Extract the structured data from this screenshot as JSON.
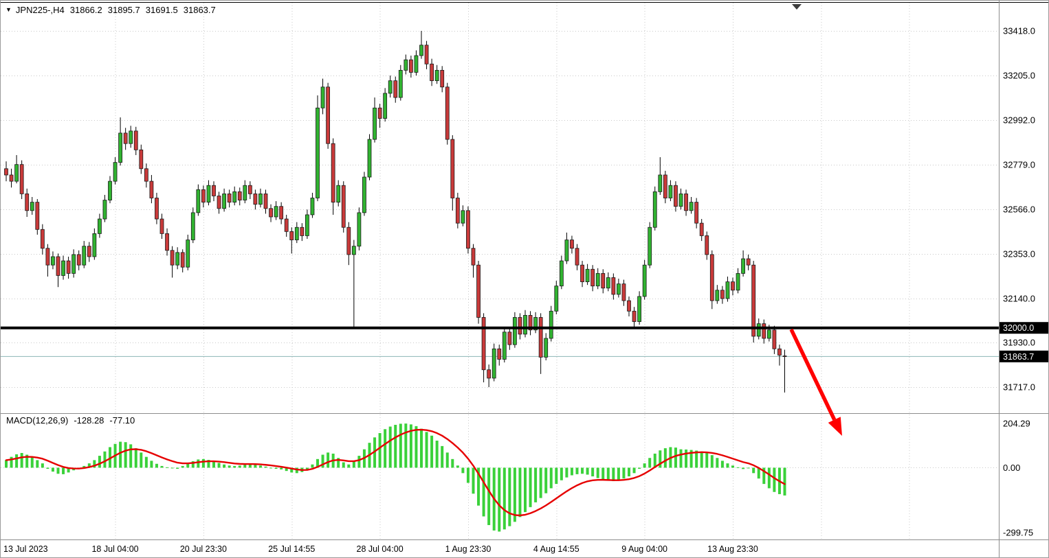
{
  "header": {
    "symbol": "JPN225-",
    "period": "H4",
    "open": "31866.2",
    "high": "31895.7",
    "low": "31691.5",
    "close": "31863.7"
  },
  "macd_panel": {
    "title": "MACD(12,26,9)",
    "main_value": "-128.28",
    "signal_value": "-77.10",
    "axis": [
      {
        "value": 204.29,
        "label": "204.29"
      },
      {
        "value": 0,
        "label": "0.00"
      },
      {
        "value": -299.75,
        "label": "-299.75"
      }
    ]
  },
  "price_axis": {
    "tick_labels": [
      "33418.0",
      "33205.0",
      "32992.0",
      "32779.0",
      "32566.0",
      "32353.0",
      "32140.0",
      "31930.0",
      "31717.0"
    ],
    "hline_label": "32000.0",
    "bid_label": "31863.7"
  },
  "time_axis": {
    "labels": [
      "13 Jul 2023",
      "18 Jul 04:00",
      "20 Jul 23:30",
      "25 Jul 14:55",
      "28 Jul 04:00",
      "1 Aug 23:30",
      "4 Aug 14:55",
      "9 Aug 04:00",
      "13 Aug 23:30"
    ]
  },
  "colors": {
    "bull": "#31b331",
    "bear": "#c93a3a",
    "candle_outline": "#1a1a1a",
    "wick": "#000000",
    "macd_bar": "#3ad13a",
    "signal": "#e60000",
    "grid": "#c8c8c8",
    "bid_line": "#8db6b6",
    "hline": "#000000",
    "arrow": "#ff0000",
    "box_bg": "#000000",
    "box_text": "#ffffff",
    "text": "#000000",
    "separator": "#8c8c8c"
  },
  "chart_data": {
    "type": "candlestick",
    "title": "JPN225-,H4",
    "symbol": "JPN225-",
    "timeframe": "H4",
    "ohlc_current": {
      "open": 31866.2,
      "high": 31895.7,
      "low": 31691.5,
      "close": 31863.7
    },
    "y_axis": {
      "ticks": [
        33418.0,
        33205.0,
        32992.0,
        32779.0,
        32566.0,
        32353.0,
        32140.0,
        31930.0,
        31717.0
      ],
      "horizontal_line": 32000.0,
      "current_price": 31863.7
    },
    "x_axis": {
      "labels": [
        "13 Jul 2023",
        "18 Jul 04:00",
        "20 Jul 23:30",
        "25 Jul 14:55",
        "28 Jul 04:00",
        "1 Aug 23:30",
        "4 Aug 14:55",
        "9 Aug 04:00",
        "13 Aug 23:30"
      ]
    },
    "candles": [
      [
        32760,
        32795,
        32700,
        32730
      ],
      [
        32730,
        32760,
        32670,
        32700
      ],
      [
        32700,
        32825,
        32690,
        32780
      ],
      [
        32780,
        32800,
        32615,
        32640
      ],
      [
        32640,
        32665,
        32530,
        32560
      ],
      [
        32560,
        32625,
        32540,
        32600
      ],
      [
        32600,
        32615,
        32445,
        32470
      ],
      [
        32470,
        32495,
        32350,
        32380
      ],
      [
        32380,
        32400,
        32245,
        32300
      ],
      [
        32300,
        32365,
        32280,
        32340
      ],
      [
        32340,
        32355,
        32195,
        32250
      ],
      [
        32250,
        32345,
        32230,
        32320
      ],
      [
        32320,
        32340,
        32235,
        32260
      ],
      [
        32260,
        32375,
        32240,
        32350
      ],
      [
        32350,
        32370,
        32275,
        32300
      ],
      [
        32300,
        32415,
        32285,
        32390
      ],
      [
        32390,
        32410,
        32315,
        32340
      ],
      [
        32340,
        32475,
        32325,
        32450
      ],
      [
        32450,
        32545,
        32430,
        32520
      ],
      [
        32520,
        32635,
        32505,
        32610
      ],
      [
        32610,
        32725,
        32595,
        32700
      ],
      [
        32700,
        32815,
        32685,
        32790
      ],
      [
        32790,
        33005,
        32775,
        32930
      ],
      [
        32930,
        32955,
        32850,
        32880
      ],
      [
        32880,
        32965,
        32860,
        32940
      ],
      [
        32940,
        32960,
        32825,
        32850
      ],
      [
        32850,
        32875,
        32735,
        32760
      ],
      [
        32760,
        32785,
        32670,
        32700
      ],
      [
        32700,
        32730,
        32595,
        32620
      ],
      [
        32620,
        32645,
        32495,
        32520
      ],
      [
        32520,
        32545,
        32425,
        32450
      ],
      [
        32450,
        32475,
        32345,
        32370
      ],
      [
        32370,
        32390,
        32240,
        32300
      ],
      [
        32300,
        32385,
        32280,
        32360
      ],
      [
        32360,
        32375,
        32265,
        32290
      ],
      [
        32290,
        32445,
        32275,
        32420
      ],
      [
        32420,
        32575,
        32405,
        32550
      ],
      [
        32550,
        32685,
        32535,
        32660
      ],
      [
        32660,
        32680,
        32575,
        32600
      ],
      [
        32600,
        32705,
        32585,
        32680
      ],
      [
        32680,
        32700,
        32605,
        32630
      ],
      [
        32630,
        32650,
        32545,
        32570
      ],
      [
        32570,
        32665,
        32555,
        32640
      ],
      [
        32640,
        32660,
        32575,
        32600
      ],
      [
        32600,
        32675,
        32585,
        32650
      ],
      [
        32650,
        32670,
        32585,
        32610
      ],
      [
        32610,
        32705,
        32595,
        32680
      ],
      [
        32680,
        32700,
        32615,
        32640
      ],
      [
        32640,
        32660,
        32565,
        32590
      ],
      [
        32590,
        32665,
        32575,
        32640
      ],
      [
        32640,
        32660,
        32545,
        32570
      ],
      [
        32570,
        32590,
        32505,
        32530
      ],
      [
        32530,
        32605,
        32515,
        32580
      ],
      [
        32580,
        32600,
        32495,
        32520
      ],
      [
        32520,
        32540,
        32435,
        32460
      ],
      [
        32460,
        32480,
        32355,
        32420
      ],
      [
        32420,
        32505,
        32405,
        32480
      ],
      [
        32480,
        32500,
        32415,
        32440
      ],
      [
        32440,
        32565,
        32425,
        32540
      ],
      [
        32540,
        32645,
        32525,
        32620
      ],
      [
        32620,
        33110,
        32605,
        33050
      ],
      [
        33050,
        33190,
        33020,
        33150
      ],
      [
        33150,
        33170,
        32855,
        32880
      ],
      [
        32880,
        32905,
        32540,
        32600
      ],
      [
        32600,
        32705,
        32580,
        32680
      ],
      [
        32680,
        32700,
        32455,
        32480
      ],
      [
        32480,
        32505,
        32300,
        32350
      ],
      [
        32350,
        32420,
        32005,
        32390
      ],
      [
        32390,
        32575,
        32370,
        32550
      ],
      [
        32550,
        32745,
        32535,
        32720
      ],
      [
        32720,
        32925,
        32705,
        32900
      ],
      [
        32900,
        33100,
        32885,
        33050
      ],
      [
        33050,
        33070,
        32955,
        33000
      ],
      [
        33000,
        33145,
        32985,
        33120
      ],
      [
        33120,
        33205,
        33100,
        33180
      ],
      [
        33180,
        33200,
        33075,
        33100
      ],
      [
        33100,
        33255,
        33085,
        33230
      ],
      [
        33230,
        33305,
        33210,
        33280
      ],
      [
        33280,
        33300,
        33195,
        33220
      ],
      [
        33220,
        33325,
        33205,
        33300
      ],
      [
        33300,
        33418,
        33285,
        33350
      ],
      [
        33350,
        33370,
        33235,
        33260
      ],
      [
        33260,
        33285,
        33155,
        33180
      ],
      [
        33180,
        33255,
        33165,
        33230
      ],
      [
        33230,
        33250,
        33125,
        33150
      ],
      [
        33150,
        33170,
        32875,
        32900
      ],
      [
        32900,
        32920,
        32560,
        32620
      ],
      [
        32620,
        32645,
        32475,
        32500
      ],
      [
        32500,
        32585,
        32485,
        32560
      ],
      [
        32560,
        32580,
        32355,
        32380
      ],
      [
        32380,
        32400,
        32240,
        32300
      ],
      [
        32300,
        32320,
        32020,
        32050
      ],
      [
        32050,
        32070,
        31740,
        31800
      ],
      [
        31800,
        31825,
        31717,
        31760
      ],
      [
        31760,
        31925,
        31745,
        31900
      ],
      [
        31900,
        31920,
        31820,
        31850
      ],
      [
        31850,
        32005,
        31835,
        31980
      ],
      [
        31980,
        32000,
        31895,
        31920
      ],
      [
        31920,
        32075,
        31905,
        32050
      ],
      [
        32050,
        32070,
        31945,
        31970
      ],
      [
        31970,
        32085,
        31955,
        32060
      ],
      [
        32060,
        32080,
        31965,
        31990
      ],
      [
        31990,
        32075,
        31975,
        32050
      ],
      [
        32050,
        32070,
        31780,
        31860
      ],
      [
        31860,
        31975,
        31845,
        31950
      ],
      [
        31950,
        32105,
        31935,
        32080
      ],
      [
        32080,
        32225,
        32065,
        32200
      ],
      [
        32200,
        32345,
        32185,
        32320
      ],
      [
        32320,
        32455,
        32305,
        32420
      ],
      [
        32420,
        32440,
        32355,
        32380
      ],
      [
        32380,
        32400,
        32275,
        32300
      ],
      [
        32300,
        32320,
        32195,
        32220
      ],
      [
        32220,
        32305,
        32205,
        32280
      ],
      [
        32280,
        32300,
        32175,
        32200
      ],
      [
        32200,
        32285,
        32185,
        32260
      ],
      [
        32260,
        32280,
        32165,
        32190
      ],
      [
        32190,
        32265,
        32175,
        32240
      ],
      [
        32240,
        32260,
        32135,
        32160
      ],
      [
        32160,
        32235,
        32145,
        32210
      ],
      [
        32210,
        32230,
        32105,
        32130
      ],
      [
        32130,
        32150,
        32055,
        32080
      ],
      [
        32080,
        32100,
        32000,
        32030
      ],
      [
        32030,
        32175,
        32015,
        32150
      ],
      [
        32150,
        32325,
        32135,
        32300
      ],
      [
        32300,
        32505,
        32285,
        32480
      ],
      [
        32480,
        32675,
        32465,
        32650
      ],
      [
        32650,
        32815,
        32635,
        32730
      ],
      [
        32730,
        32750,
        32595,
        32620
      ],
      [
        32620,
        32705,
        32605,
        32680
      ],
      [
        32680,
        32700,
        32555,
        32580
      ],
      [
        32580,
        32665,
        32565,
        32640
      ],
      [
        32640,
        32660,
        32535,
        32560
      ],
      [
        32560,
        32625,
        32545,
        32600
      ],
      [
        32600,
        32620,
        32475,
        32500
      ],
      [
        32500,
        32520,
        32415,
        32440
      ],
      [
        32440,
        32460,
        32325,
        32350
      ],
      [
        32350,
        32370,
        32090,
        32130
      ],
      [
        32130,
        32205,
        32115,
        32180
      ],
      [
        32180,
        32200,
        32115,
        32140
      ],
      [
        32140,
        32245,
        32125,
        32220
      ],
      [
        32220,
        32240,
        32155,
        32180
      ],
      [
        32180,
        32285,
        32165,
        32260
      ],
      [
        32260,
        32370,
        32245,
        32330
      ],
      [
        32330,
        32350,
        32275,
        32300
      ],
      [
        32300,
        32320,
        31930,
        31960
      ],
      [
        31960,
        32045,
        31945,
        32020
      ],
      [
        32020,
        32040,
        31925,
        31950
      ],
      [
        31950,
        32015,
        31935,
        31990
      ],
      [
        31990,
        32010,
        31875,
        31900
      ],
      [
        31900,
        31920,
        31820,
        31870
      ],
      [
        31866.2,
        31895.7,
        31691.5,
        31863.7
      ]
    ],
    "macd": {
      "label": "MACD(12,26,9)",
      "signal_method": "EMA9 of histogram",
      "last_histogram": -128.28,
      "last_signal": -77.1,
      "y_ticks": [
        204.29,
        0.0,
        -299.75
      ],
      "values": [
        35,
        50,
        62,
        68,
        60,
        48,
        35,
        20,
        -5,
        -18,
        -28,
        -30,
        -22,
        -12,
        -5,
        8,
        20,
        35,
        55,
        75,
        95,
        110,
        120,
        118,
        108,
        90,
        70,
        50,
        32,
        18,
        8,
        2,
        -2,
        -5,
        8,
        20,
        30,
        38,
        40,
        36,
        30,
        22,
        15,
        10,
        8,
        10,
        14,
        18,
        15,
        10,
        5,
        0,
        -5,
        -8,
        -15,
        -22,
        -25,
        -20,
        -10,
        15,
        40,
        60,
        70,
        65,
        45,
        25,
        15,
        30,
        55,
        85,
        115,
        140,
        160,
        178,
        190,
        198,
        203,
        204,
        200,
        192,
        180,
        165,
        148,
        125,
        100,
        70,
        40,
        10,
        -25,
        -70,
        -120,
        -175,
        -225,
        -265,
        -290,
        -295,
        -285,
        -270,
        -250,
        -228,
        -205,
        -182,
        -160,
        -140,
        -118,
        -95,
        -75,
        -58,
        -45,
        -35,
        -30,
        -28,
        -32,
        -40,
        -48,
        -55,
        -60,
        -62,
        -58,
        -50,
        -40,
        -25,
        -5,
        20,
        45,
        65,
        80,
        90,
        95,
        93,
        85,
        84,
        82,
        79,
        75,
        68,
        58,
        45,
        32,
        20,
        10,
        2,
        -6,
        -2,
        -25,
        -50,
        -75,
        -95,
        -112,
        -122,
        -128.28
      ]
    },
    "annotations": [
      {
        "type": "horizontal-line",
        "price": 32000.0,
        "color": "#000000"
      },
      {
        "type": "arrow",
        "color": "#ff0000",
        "direction": "down-right"
      }
    ]
  }
}
